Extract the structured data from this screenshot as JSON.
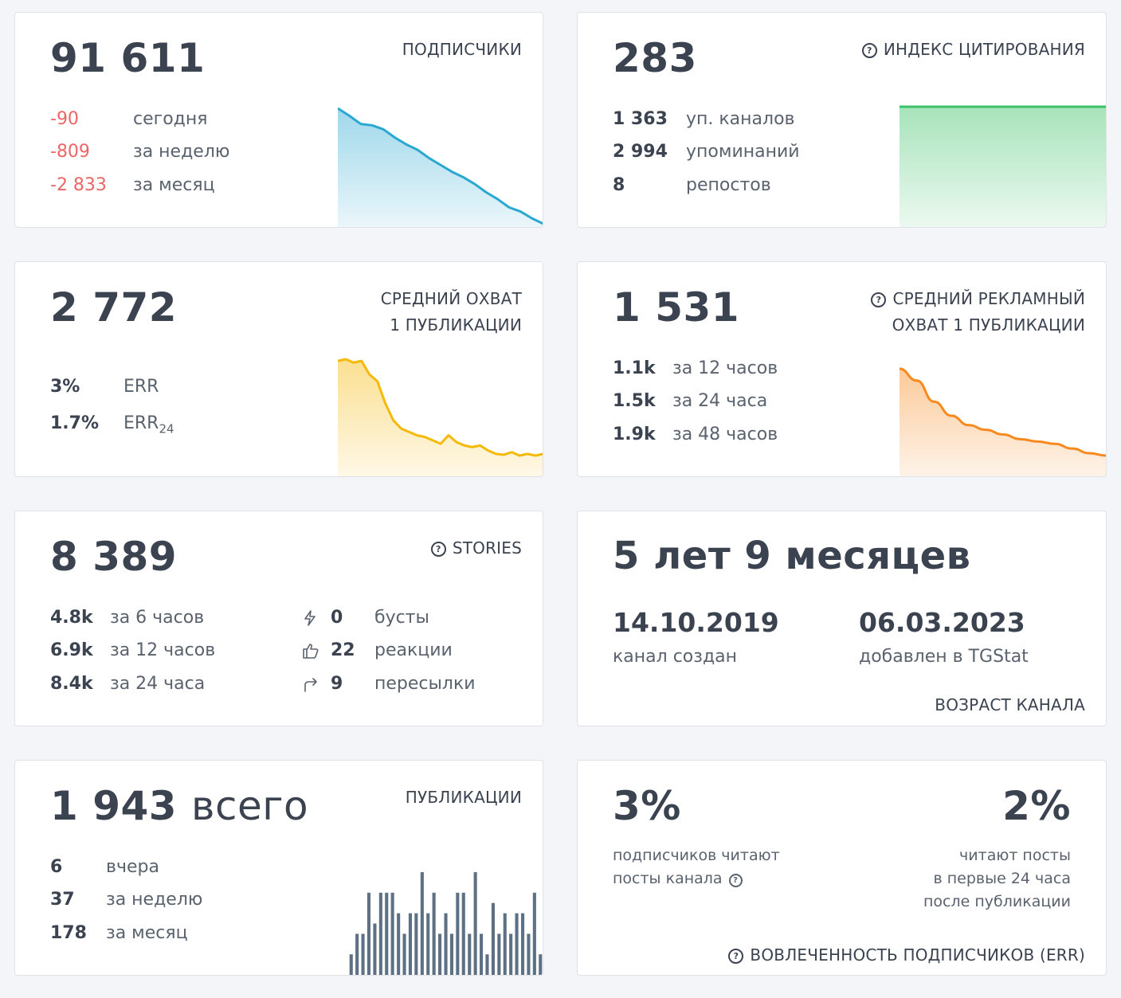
{
  "subscribers": {
    "value": "91 611",
    "title": "ПОДПИСЧИКИ",
    "rows": [
      {
        "value": "-90",
        "label": "сегодня"
      },
      {
        "value": "-809",
        "label": "за неделю"
      },
      {
        "value": "-2 833",
        "label": "за месяц"
      }
    ],
    "color": "#2aa8d2"
  },
  "citation": {
    "value": "283",
    "title": "ИНДЕКС ЦИТИРОВАНИЯ",
    "rows": [
      {
        "value": "1 363",
        "label": "уп. каналов"
      },
      {
        "value": "2 994",
        "label": "упоминаний"
      },
      {
        "value": "8",
        "label": "репостов"
      }
    ],
    "color": "#3cc167"
  },
  "reach": {
    "value": "2 772",
    "title_line1": "СРЕДНИЙ ОХВАТ",
    "title_line2": "1 ПУБЛИКАЦИИ",
    "err": {
      "value": "3%",
      "label": "ERR"
    },
    "err24": {
      "value": "1.7%",
      "label": "ERR",
      "sub": "24"
    },
    "color": "#f5b90a"
  },
  "ad_reach": {
    "value": "1 531",
    "title_line1": "СРЕДНИЙ РЕКЛАМНЫЙ",
    "title_line2": "ОХВАТ 1 ПУБЛИКАЦИИ",
    "rows": [
      {
        "value": "1.1k",
        "label": "за 12 часов"
      },
      {
        "value": "1.5k",
        "label": "за 24 часа"
      },
      {
        "value": "1.9k",
        "label": "за 48 часов"
      }
    ],
    "color": "#f7891e"
  },
  "stories": {
    "value": "8 389",
    "title": "STORIES",
    "rows": [
      {
        "value": "4.8k",
        "label": "за 6 часов"
      },
      {
        "value": "6.9k",
        "label": "за 12 часов"
      },
      {
        "value": "8.4k",
        "label": "за 24 часа"
      }
    ],
    "stats": [
      {
        "icon": "lightning-icon",
        "value": "0",
        "label": "бусты"
      },
      {
        "icon": "thumbs-up-icon",
        "value": "22",
        "label": "реакции"
      },
      {
        "icon": "forward-icon",
        "value": "9",
        "label": "пересылки"
      }
    ]
  },
  "age": {
    "value": "5 лет 9 месяцев",
    "created_date": "14.10.2019",
    "created_label": "канал создан",
    "added_date": "06.03.2023",
    "added_label": "добавлен в TGStat",
    "title": "ВОЗРАСТ КАНАЛА"
  },
  "posts": {
    "value": "1 943",
    "value_suffix": "всего",
    "title": "ПУБЛИКАЦИИ",
    "rows": [
      {
        "value": "6",
        "label": "вчера"
      },
      {
        "value": "37",
        "label": "за неделю"
      },
      {
        "value": "178",
        "label": "за месяц"
      }
    ],
    "bar_color": "#5e7184"
  },
  "engagement": {
    "left_value": "3%",
    "left_line1": "подписчиков читают",
    "left_line2": "посты канала",
    "right_value": "2%",
    "right_line1": "читают посты",
    "right_line2": "в первые 24 часа",
    "right_line3": "после публикации",
    "title": "ВОВЛЕЧЕННОСТЬ ПОДПИСЧИКОВ (ERR)"
  },
  "chart_data": [
    {
      "type": "area",
      "series": [
        {
          "values": [
            92444,
            92390,
            92330,
            92320,
            92290,
            92230,
            92180,
            92140,
            92080,
            92030,
            91980,
            91940,
            91890,
            91830,
            91780,
            91720,
            91690,
            91640,
            91600
          ]
        }
      ]
    },
    {
      "type": "area",
      "series": [
        {
          "values": [
            283,
            283,
            283,
            283,
            283,
            283,
            283,
            283,
            283,
            283
          ]
        }
      ]
    },
    {
      "type": "area",
      "series": [
        {
          "values": [
            3300,
            3310,
            3290,
            3300,
            3220,
            3180,
            3050,
            2950,
            2900,
            2880,
            2860,
            2850,
            2830,
            2810,
            2860,
            2820,
            2800,
            2790,
            2800,
            2770,
            2750,
            2745,
            2760,
            2740,
            2750,
            2740,
            2750
          ]
        }
      ]
    },
    {
      "type": "area",
      "series": [
        {
          "values": [
            1900,
            1850,
            1760,
            1700,
            1660,
            1640,
            1620,
            1600,
            1590,
            1580,
            1560,
            1540,
            1530
          ]
        }
      ]
    },
    {
      "type": "bar",
      "values": [
        2,
        4,
        4,
        8,
        5,
        8,
        8,
        8,
        6,
        4,
        6,
        6,
        10,
        6,
        8,
        4,
        6,
        4,
        8,
        8,
        4,
        10,
        4,
        2,
        7,
        4,
        6,
        4,
        6,
        6,
        4,
        8,
        2
      ]
    }
  ]
}
